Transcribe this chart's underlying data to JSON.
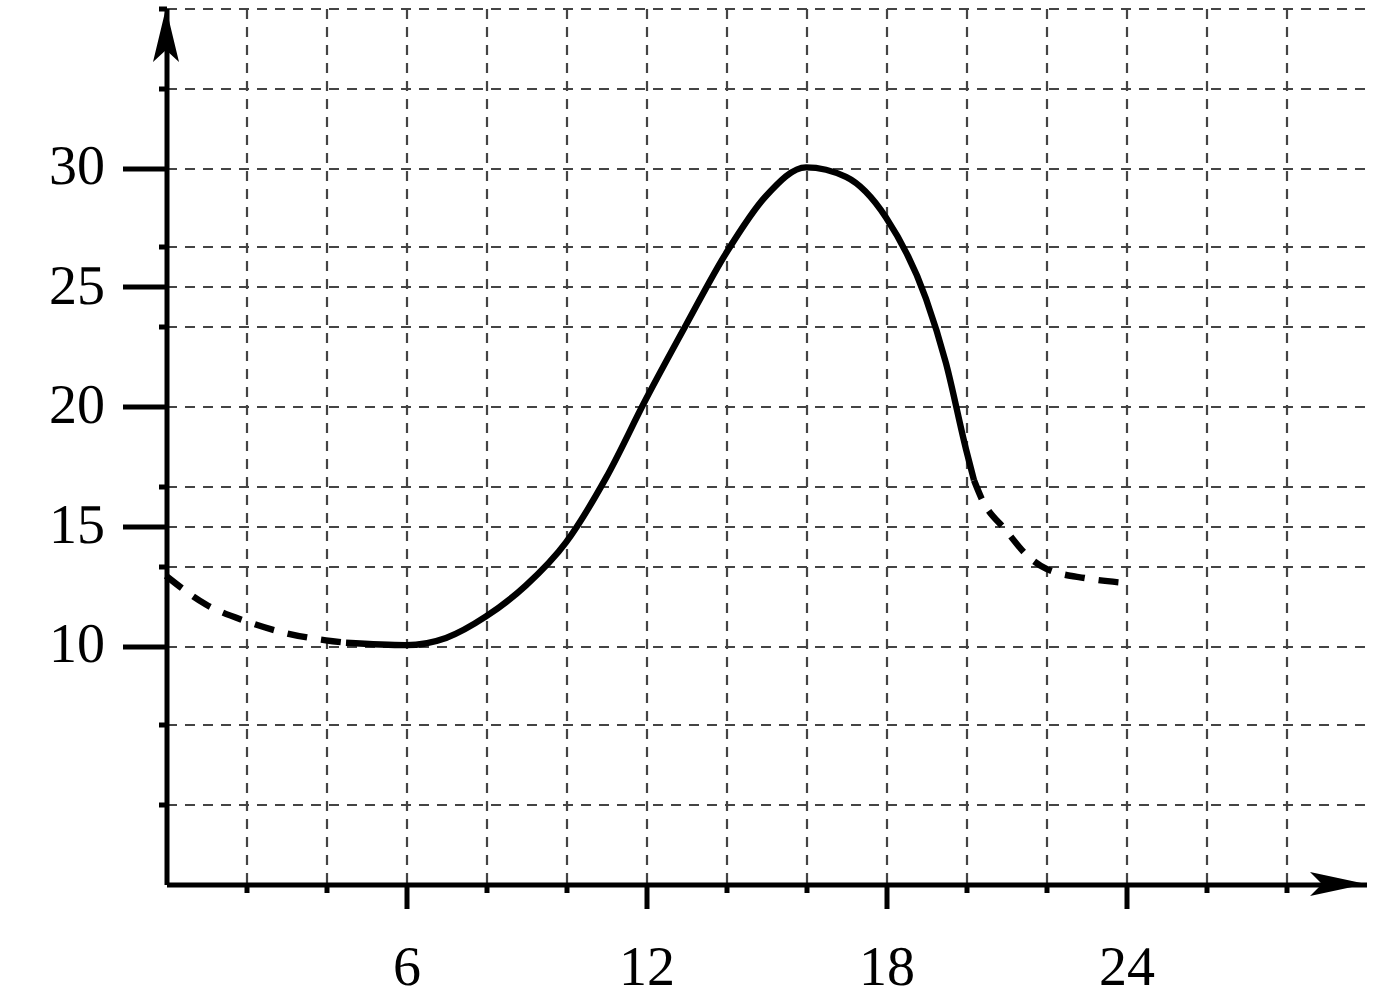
{
  "chart_data": {
    "type": "line",
    "series": [
      {
        "color": "#000000",
        "line_style": "dashed",
        "x": [
          0,
          1,
          2,
          3,
          4,
          4.5
        ],
        "values": [
          12.9,
          11.7,
          11.0,
          10.5,
          10.2,
          10.1
        ]
      },
      {
        "color": "#000000",
        "line_style": "solid",
        "x": [
          4.5,
          6,
          7,
          8,
          9,
          10,
          11,
          12,
          13,
          14,
          15,
          16,
          17,
          18,
          19,
          19.5,
          20,
          20.2
        ],
        "values": [
          10.1,
          10.0,
          10.3,
          11.2,
          12.5,
          14.3,
          17.0,
          20.3,
          23.4,
          26.4,
          28.8,
          30.0,
          29.6,
          27.9,
          24.5,
          21.8,
          18.2,
          16.9
        ]
      },
      {
        "color": "#000000",
        "line_style": "dashed",
        "x": [
          20.2,
          20.4,
          21,
          21.5,
          22,
          23,
          24
        ],
        "values": [
          16.9,
          16.1,
          14.8,
          13.8,
          13.2,
          12.8,
          12.6
        ]
      }
    ],
    "xlim": [
      0,
      30
    ],
    "ylim": [
      0,
      36.67
    ],
    "xticks": [
      {
        "value": 2,
        "label": null
      },
      {
        "value": 4,
        "label": null
      },
      6,
      {
        "value": 8,
        "label": null
      },
      {
        "value": 10,
        "label": null
      },
      12,
      {
        "value": 14,
        "label": null
      },
      {
        "value": 16,
        "label": null
      },
      18,
      {
        "value": 20,
        "label": null
      },
      {
        "value": 22,
        "label": null
      },
      24,
      {
        "value": 26,
        "label": null
      },
      {
        "value": 28,
        "label": null
      }
    ],
    "yticks": [
      {
        "value": 3.33,
        "label": null
      },
      {
        "value": 6.67,
        "label": null
      },
      10,
      {
        "value": 13.33,
        "label": null
      },
      15,
      {
        "value": 16.67,
        "label": null
      },
      20,
      {
        "value": 23.33,
        "label": null
      },
      25,
      {
        "value": 26.67,
        "label": null
      },
      30,
      {
        "value": 33.33,
        "label": null
      },
      {
        "value": 36.67,
        "label": null
      }
    ],
    "grid": true
  }
}
